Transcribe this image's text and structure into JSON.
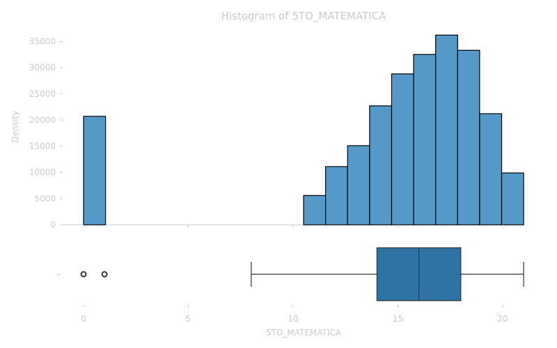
{
  "title": "Histogram of 5TO_MATEMATICA",
  "chart_data": [
    {
      "type": "histogram",
      "title": "Histogram of 5TO_MATEMATICA",
      "xlabel": "",
      "ylabel": "Density",
      "bin_width": 1.05,
      "xlim": [
        -1,
        21
      ],
      "ylim": [
        0,
        37000
      ],
      "yticks": [
        0,
        5000,
        10000,
        15000,
        20000,
        25000,
        30000,
        35000
      ],
      "ytick_labels": [
        "0",
        "5000",
        "10000",
        "15000",
        "20000",
        "25000",
        "30000",
        "35000"
      ],
      "bins": [
        {
          "start": 0.0,
          "value": 20700
        },
        {
          "start": 10.5,
          "value": 5600
        },
        {
          "start": 11.55,
          "value": 11100
        },
        {
          "start": 12.6,
          "value": 15100
        },
        {
          "start": 13.65,
          "value": 22700
        },
        {
          "start": 14.7,
          "value": 28800
        },
        {
          "start": 15.75,
          "value": 32500
        },
        {
          "start": 16.8,
          "value": 36200
        },
        {
          "start": 17.85,
          "value": 33300
        },
        {
          "start": 18.9,
          "value": 21200
        },
        {
          "start": 19.95,
          "value": 9900
        }
      ],
      "bar_color": "#5499c7",
      "grid": false
    },
    {
      "type": "boxplot",
      "xlabel": "5TO_MATEMATICA",
      "xlim": [
        -1,
        21
      ],
      "xticks": [
        0,
        5,
        10,
        15,
        20
      ],
      "xtick_labels": [
        "0",
        "5",
        "10",
        "15",
        "20"
      ],
      "whisker_low": 8,
      "q1": 14,
      "median": 16,
      "q3": 18,
      "whisker_high": 21,
      "outliers": [
        0,
        1
      ],
      "box_color": "#2e73a4",
      "ytick_label": "-"
    }
  ]
}
